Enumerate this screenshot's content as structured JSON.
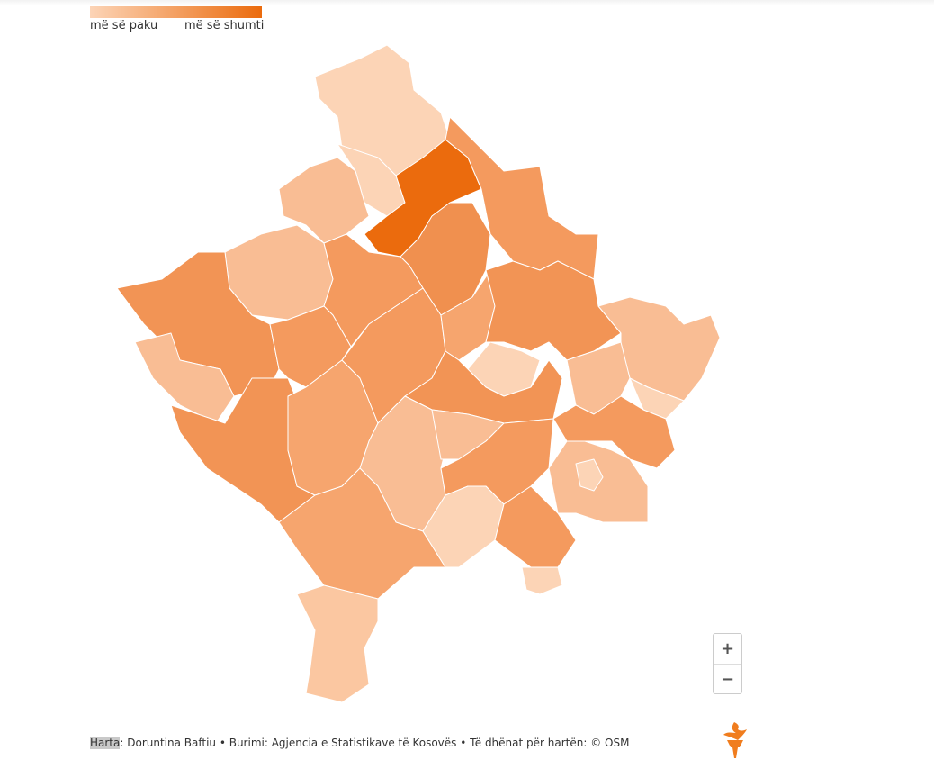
{
  "legend": {
    "min_label": "më së paku",
    "max_label": "më së shumti"
  },
  "zoom": {
    "in": "+",
    "out": "−"
  },
  "footer": {
    "credit_label": "Harta",
    "credit_text": ": Doruntina Baftiu • Burimi: Agjencia e Statistikave të Kosovës • Të dhënat për hartën: © OSM"
  }
}
